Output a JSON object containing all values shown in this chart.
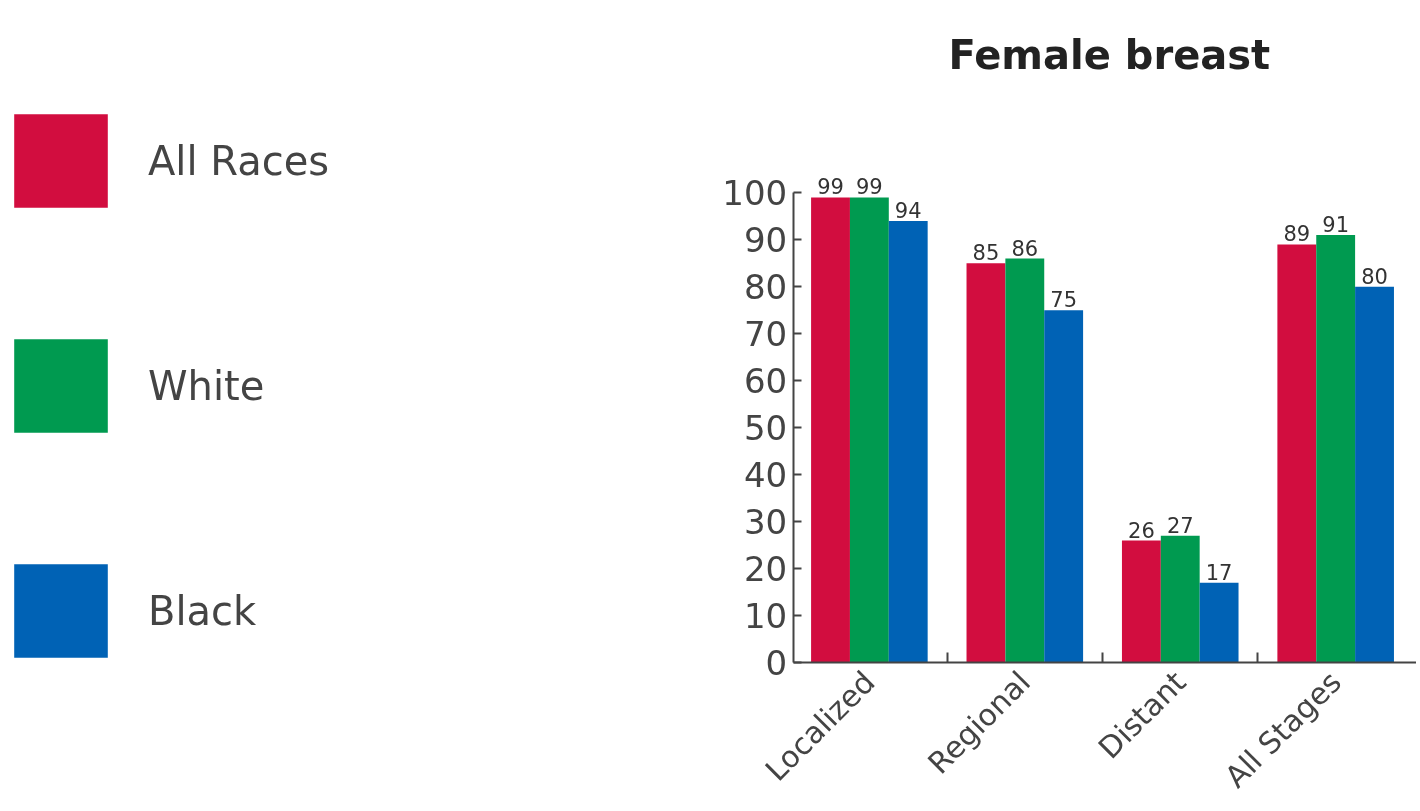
{
  "chart_data": {
    "type": "bar",
    "title": "Female breast",
    "categories": [
      "Localized",
      "Regional",
      "Distant",
      "All Stages"
    ],
    "series": [
      {
        "name": "All Races",
        "color": "#d20d3f",
        "values": [
          99,
          85,
          26,
          89
        ]
      },
      {
        "name": "White",
        "color": "#009a50",
        "values": [
          99,
          86,
          27,
          91
        ]
      },
      {
        "name": "Black",
        "color": "#0062b5",
        "values": [
          94,
          75,
          17,
          80
        ]
      }
    ],
    "ylim": [
      0,
      100
    ],
    "yticks": [
      0,
      10,
      20,
      30,
      40,
      50,
      60,
      70,
      80,
      90,
      100
    ],
    "data_labels": true,
    "legend": "left",
    "grid": false
  }
}
